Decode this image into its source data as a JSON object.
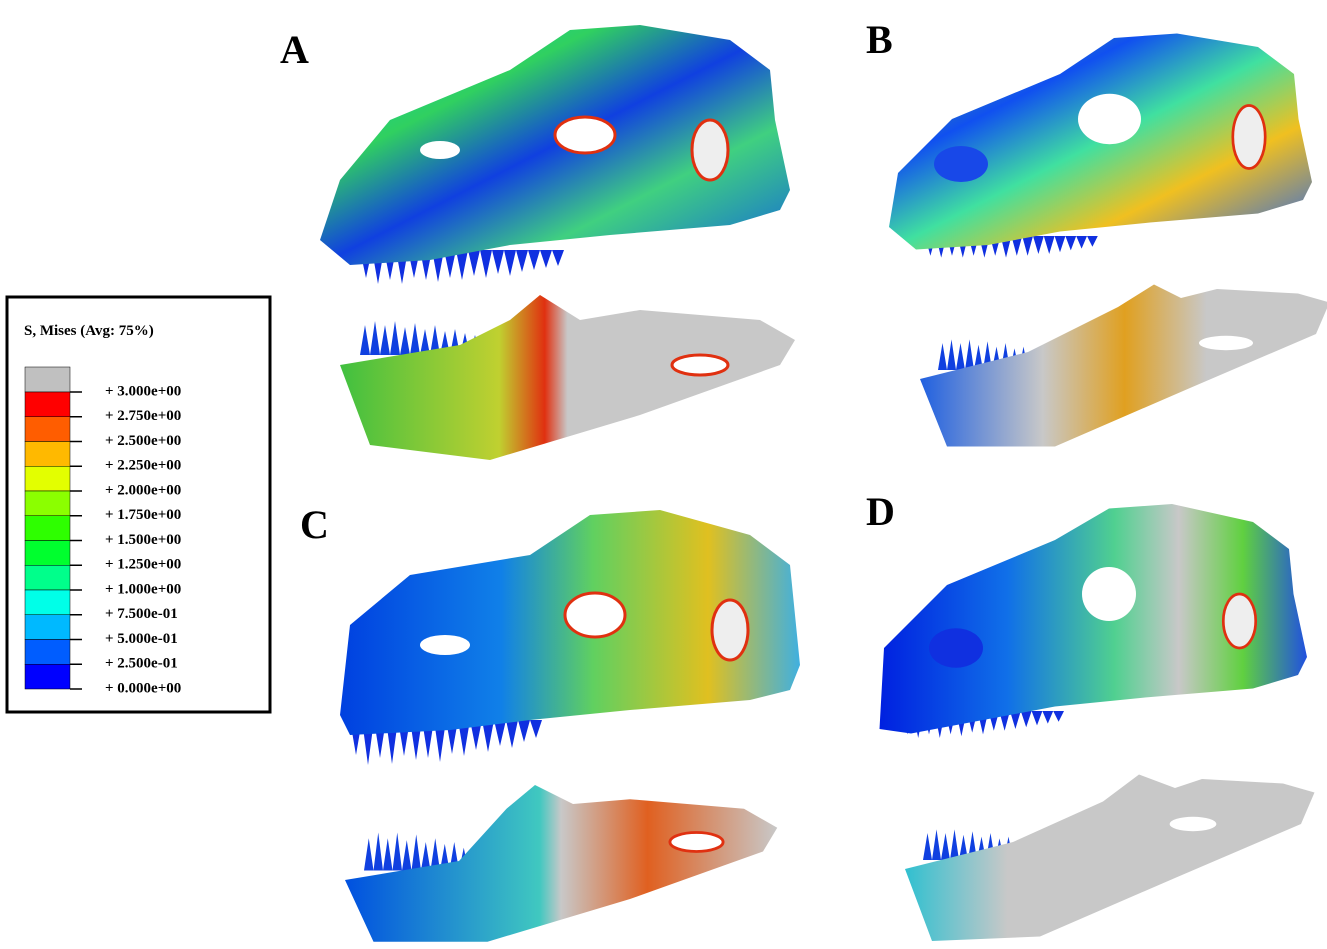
{
  "panels": [
    {
      "label": "A"
    },
    {
      "label": "B"
    },
    {
      "label": "C"
    },
    {
      "label": "D"
    }
  ],
  "legend": {
    "title": "S, Mises (Avg: 75%)",
    "labels": [
      "+ 3.000e+00",
      "+ 2.750e+00",
      "+ 2.500e+00",
      "+ 2.250e+00",
      "+ 2.000e+00",
      "+ 1.750e+00",
      "+ 1.500e+00",
      "+ 1.250e+00",
      "+ 1.000e+00",
      "+ 7.500e-01",
      "+ 5.000e-01",
      "+ 2.500e-01",
      "+ 0.000e+00"
    ],
    "colors": [
      "#c0c0c0",
      "#ff0000",
      "#ff5d00",
      "#ffb900",
      "#e3ff00",
      "#8bff00",
      "#2eff00",
      "#00ff2e",
      "#00ff8b",
      "#00ffe8",
      "#00b9ff",
      "#005dff",
      "#0000ff"
    ]
  }
}
